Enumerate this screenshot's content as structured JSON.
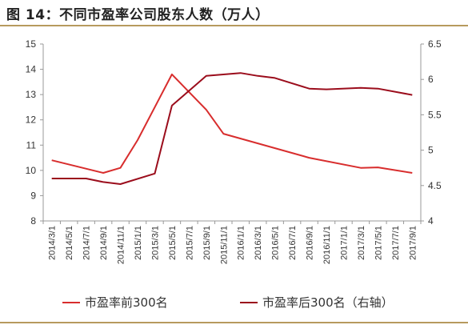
{
  "header": {
    "title": "图 14：不同市盈率公司股东人数（万人）"
  },
  "colors": {
    "rule": "#b79a5e",
    "axis": "#999999",
    "series_front": "#d82d2d",
    "series_back": "#9b0d1c"
  },
  "chart_data": {
    "type": "line",
    "title": "",
    "xlabel": "",
    "ylabel": "",
    "x": [
      "2014/3/1",
      "2014/5/1",
      "2014/7/1",
      "2014/9/1",
      "2014/11/1",
      "2015/1/1",
      "2015/3/1",
      "2015/5/1",
      "2015/7/1",
      "2015/9/1",
      "2015/11/1",
      "2016/1/1",
      "2016/3/1",
      "2016/5/1",
      "2016/7/1",
      "2016/9/1",
      "2016/11/1",
      "2017/1/1",
      "2017/3/1",
      "2017/5/1",
      "2017/7/1",
      "2017/9/1"
    ],
    "ylim_left": [
      8,
      15
    ],
    "yticks_left": [
      "8",
      "9",
      "10",
      "11",
      "12",
      "13",
      "14",
      "15"
    ],
    "ylim_right": [
      4,
      6.5
    ],
    "yticks_right": [
      "4",
      "4.5",
      "5",
      "5.5",
      "6",
      "6.5"
    ],
    "grid": false,
    "legend_position": "bottom",
    "series": [
      {
        "name": "市盈率前300名",
        "axis": "left",
        "color": "#d82d2d",
        "values": [
          10.4,
          null,
          null,
          9.9,
          10.1,
          11.2,
          null,
          13.8,
          null,
          12.4,
          11.45,
          null,
          null,
          null,
          null,
          10.5,
          null,
          null,
          10.1,
          10.12,
          null,
          9.9
        ]
      },
      {
        "name": "市盈率后300名（右轴）",
        "axis": "right",
        "color": "#9b0d1c",
        "values": [
          4.6,
          null,
          4.6,
          4.55,
          4.52,
          null,
          4.67,
          5.63,
          null,
          6.05,
          null,
          6.09,
          6.05,
          6.02,
          null,
          5.87,
          5.86,
          null,
          5.88,
          5.87,
          null,
          5.78
        ]
      }
    ]
  }
}
